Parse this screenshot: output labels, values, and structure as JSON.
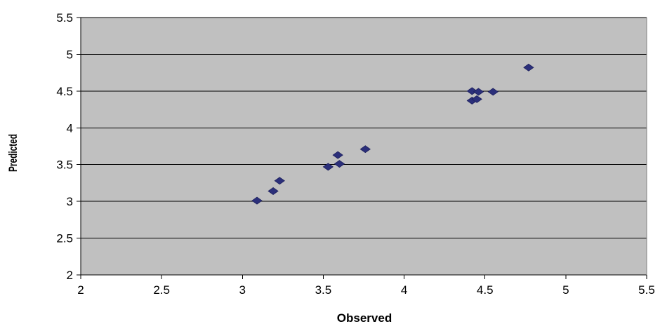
{
  "chart_data": {
    "type": "scatter",
    "title": "",
    "xlabel": "Observed",
    "ylabel": "Predicted",
    "xlim": [
      2,
      5.5
    ],
    "ylim": [
      2,
      5.5
    ],
    "x_ticks": [
      "2",
      "2.5",
      "3",
      "3.5",
      "4",
      "4.5",
      "5",
      "5.5"
    ],
    "y_ticks": [
      "2",
      "2.5",
      "3",
      "3.5",
      "4",
      "4.5",
      "5",
      "5.5"
    ],
    "grid": "horizontal",
    "legend": "none",
    "series": [
      {
        "marker": "diamond",
        "color": "#2b2f7a",
        "points": [
          {
            "x": 3.09,
            "y": 3.01
          },
          {
            "x": 3.19,
            "y": 3.14
          },
          {
            "x": 3.23,
            "y": 3.28
          },
          {
            "x": 3.53,
            "y": 3.47
          },
          {
            "x": 3.59,
            "y": 3.63
          },
          {
            "x": 3.6,
            "y": 3.51
          },
          {
            "x": 3.76,
            "y": 3.71
          },
          {
            "x": 4.42,
            "y": 4.5
          },
          {
            "x": 4.42,
            "y": 4.37
          },
          {
            "x": 4.45,
            "y": 4.39
          },
          {
            "x": 4.46,
            "y": 4.49
          },
          {
            "x": 4.55,
            "y": 4.49
          },
          {
            "x": 4.77,
            "y": 4.82
          }
        ]
      }
    ]
  },
  "colors": {
    "plot_background": "#c0c0c0",
    "gridline": "#000000",
    "marker": "#2b2f7a"
  }
}
